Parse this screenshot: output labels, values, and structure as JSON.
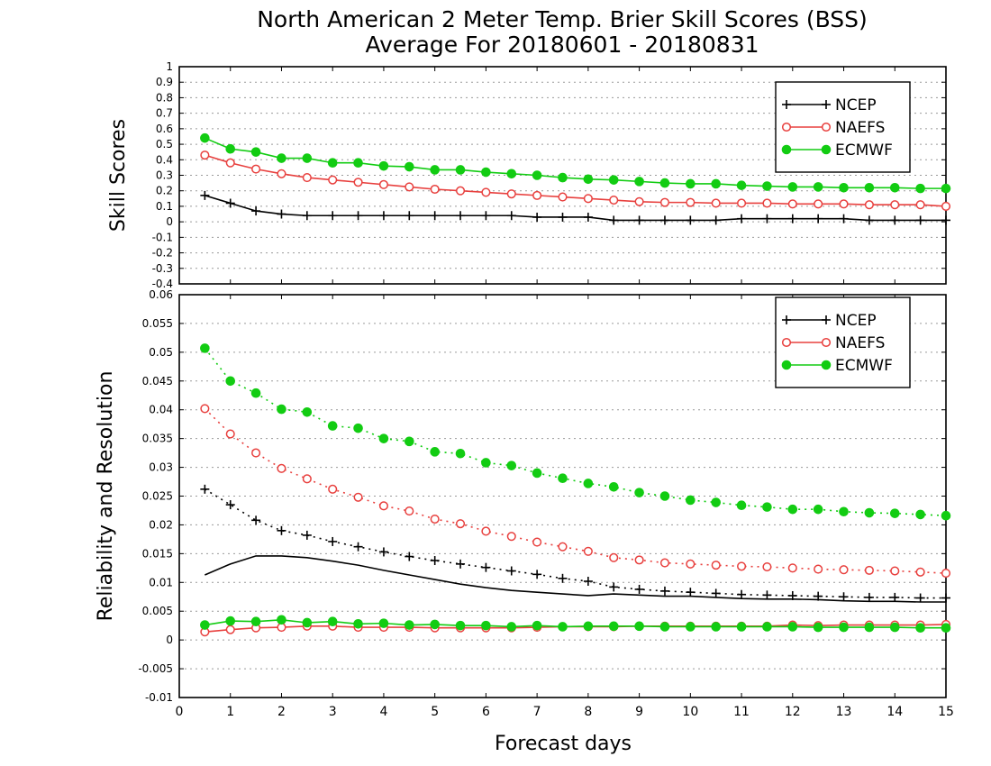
{
  "figure": {
    "title_line1": "North American 2 Meter Temp. Brier Skill Scores (BSS)",
    "title_line2": "Average For 20180601 - 20180831",
    "xlabel": "Forecast days"
  },
  "colors": {
    "NCEP": "#000000",
    "NAEFS": "#e8403e",
    "ECMWF": "#12cc12",
    "grid": "#9a9a9a"
  },
  "chart_data": [
    {
      "type": "line",
      "ylabel": "Skill Scores",
      "xlim": [
        0,
        15
      ],
      "ylim": [
        -0.4,
        1
      ],
      "xticks": [
        0,
        1,
        2,
        3,
        4,
        5,
        6,
        7,
        8,
        9,
        10,
        11,
        12,
        13,
        14,
        15
      ],
      "yticks": [
        "-0.4",
        "-0.3",
        "-0.2",
        "-0.1",
        "0",
        "0.1",
        "0.2",
        "0.3",
        "0.4",
        "0.5",
        "0.6",
        "0.7",
        "0.8",
        "0.9",
        "1"
      ],
      "grid": true,
      "legend": {
        "position": "top-right",
        "entries": [
          "NCEP",
          "NAEFS",
          "ECMWF"
        ]
      },
      "x": [
        0.5,
        1,
        1.5,
        2,
        2.5,
        3,
        3.5,
        4,
        4.5,
        5,
        5.5,
        6,
        6.5,
        7,
        7.5,
        8,
        8.5,
        9,
        9.5,
        10,
        10.5,
        11,
        11.5,
        12,
        12.5,
        13,
        13.5,
        14,
        14.5,
        15
      ],
      "series": [
        {
          "name": "NCEP",
          "marker": "plus",
          "style": "solid",
          "values": [
            0.17,
            0.12,
            0.07,
            0.05,
            0.04,
            0.04,
            0.04,
            0.04,
            0.04,
            0.04,
            0.04,
            0.04,
            0.04,
            0.03,
            0.03,
            0.03,
            0.01,
            0.01,
            0.01,
            0.01,
            0.01,
            0.02,
            0.02,
            0.02,
            0.02,
            0.02,
            0.01,
            0.01,
            0.01,
            0.01
          ]
        },
        {
          "name": "NAEFS",
          "marker": "open-circle",
          "style": "solid",
          "values": [
            0.43,
            0.38,
            0.34,
            0.31,
            0.285,
            0.27,
            0.255,
            0.24,
            0.225,
            0.21,
            0.2,
            0.19,
            0.18,
            0.17,
            0.16,
            0.15,
            0.14,
            0.13,
            0.125,
            0.125,
            0.12,
            0.12,
            0.12,
            0.115,
            0.115,
            0.115,
            0.11,
            0.11,
            0.11,
            0.1
          ]
        },
        {
          "name": "ECMWF",
          "marker": "filled-circle",
          "style": "solid",
          "values": [
            0.54,
            0.47,
            0.45,
            0.41,
            0.41,
            0.38,
            0.38,
            0.36,
            0.355,
            0.335,
            0.335,
            0.32,
            0.31,
            0.3,
            0.285,
            0.275,
            0.27,
            0.26,
            0.25,
            0.245,
            0.245,
            0.235,
            0.23,
            0.225,
            0.225,
            0.22,
            0.22,
            0.22,
            0.215,
            0.215
          ]
        }
      ]
    },
    {
      "type": "line",
      "ylabel": "Reliability and Resolution",
      "xlim": [
        0,
        15
      ],
      "ylim": [
        -0.01,
        0.06
      ],
      "xticks": [
        0,
        1,
        2,
        3,
        4,
        5,
        6,
        7,
        8,
        9,
        10,
        11,
        12,
        13,
        14,
        15
      ],
      "yticks": [
        "-0.01",
        "-0.005",
        "0",
        "0.005",
        "0.01",
        "0.015",
        "0.02",
        "0.025",
        "0.03",
        "0.035",
        "0.04",
        "0.045",
        "0.05",
        "0.055",
        "0.06"
      ],
      "grid": true,
      "legend": {
        "position": "top-right",
        "entries": [
          "NCEP",
          "NAEFS",
          "ECMWF"
        ]
      },
      "x": [
        0.5,
        1,
        1.5,
        2,
        2.5,
        3,
        3.5,
        4,
        4.5,
        5,
        5.5,
        6,
        6.5,
        7,
        7.5,
        8,
        8.5,
        9,
        9.5,
        10,
        10.5,
        11,
        11.5,
        12,
        12.5,
        13,
        13.5,
        14,
        14.5,
        15
      ],
      "series": [
        {
          "name": "NCEP",
          "marker": "plus",
          "style": "dotted",
          "values": [
            0.0262,
            0.0235,
            0.0208,
            0.019,
            0.0182,
            0.0171,
            0.0162,
            0.0153,
            0.0145,
            0.0138,
            0.0132,
            0.0126,
            0.012,
            0.0114,
            0.0107,
            0.0102,
            0.0092,
            0.0088,
            0.0085,
            0.0083,
            0.0081,
            0.0079,
            0.0078,
            0.0077,
            0.0076,
            0.0075,
            0.0074,
            0.0074,
            0.0073,
            0.0073
          ]
        },
        {
          "name": "NAEFS",
          "marker": "open-circle",
          "style": "dotted",
          "values": [
            0.0402,
            0.0358,
            0.0325,
            0.0298,
            0.028,
            0.0262,
            0.0248,
            0.0233,
            0.0224,
            0.021,
            0.0202,
            0.0189,
            0.018,
            0.017,
            0.0162,
            0.0154,
            0.0143,
            0.0139,
            0.0134,
            0.0132,
            0.013,
            0.0128,
            0.0127,
            0.0125,
            0.0123,
            0.0122,
            0.0121,
            0.012,
            0.0118,
            0.0116
          ]
        },
        {
          "name": "ECMWF",
          "marker": "filled-circle",
          "style": "dotted",
          "values": [
            0.0507,
            0.045,
            0.0429,
            0.0401,
            0.0396,
            0.0372,
            0.0368,
            0.035,
            0.0345,
            0.0327,
            0.0324,
            0.0308,
            0.0303,
            0.029,
            0.0281,
            0.0272,
            0.0266,
            0.0256,
            0.025,
            0.0243,
            0.0239,
            0.0234,
            0.0231,
            0.0227,
            0.0227,
            0.0223,
            0.0221,
            0.022,
            0.0218,
            0.0216
          ]
        },
        {
          "name": "NCEP",
          "marker": "none",
          "style": "solid",
          "values": [
            0.0113,
            0.0132,
            0.0146,
            0.0146,
            0.0143,
            0.0137,
            0.013,
            0.0121,
            0.0113,
            0.0105,
            0.0097,
            0.0091,
            0.0086,
            0.0083,
            0.008,
            0.0077,
            0.008,
            0.0078,
            0.0076,
            0.0076,
            0.0074,
            0.0072,
            0.0071,
            0.0071,
            0.007,
            0.0068,
            0.0067,
            0.0067,
            0.0066,
            0.0066
          ]
        },
        {
          "name": "NAEFS",
          "marker": "open-circle",
          "style": "solid",
          "values": [
            0.0014,
            0.0018,
            0.0021,
            0.0022,
            0.0024,
            0.0024,
            0.0022,
            0.0022,
            0.0022,
            0.0021,
            0.0021,
            0.0021,
            0.0021,
            0.0022,
            0.0023,
            0.0023,
            0.0023,
            0.0024,
            0.0024,
            0.0024,
            0.0024,
            0.0024,
            0.0024,
            0.0026,
            0.0025,
            0.0026,
            0.0026,
            0.0026,
            0.0026,
            0.0027
          ]
        },
        {
          "name": "ECMWF",
          "marker": "filled-circle",
          "style": "solid",
          "values": [
            0.0026,
            0.0033,
            0.0032,
            0.0035,
            0.003,
            0.0032,
            0.0028,
            0.0029,
            0.0026,
            0.0027,
            0.0025,
            0.0025,
            0.0023,
            0.0025,
            0.0023,
            0.0024,
            0.0024,
            0.0024,
            0.0023,
            0.0023,
            0.0023,
            0.0023,
            0.0023,
            0.0023,
            0.0022,
            0.0022,
            0.0022,
            0.0022,
            0.0021,
            0.0021
          ]
        }
      ]
    }
  ]
}
